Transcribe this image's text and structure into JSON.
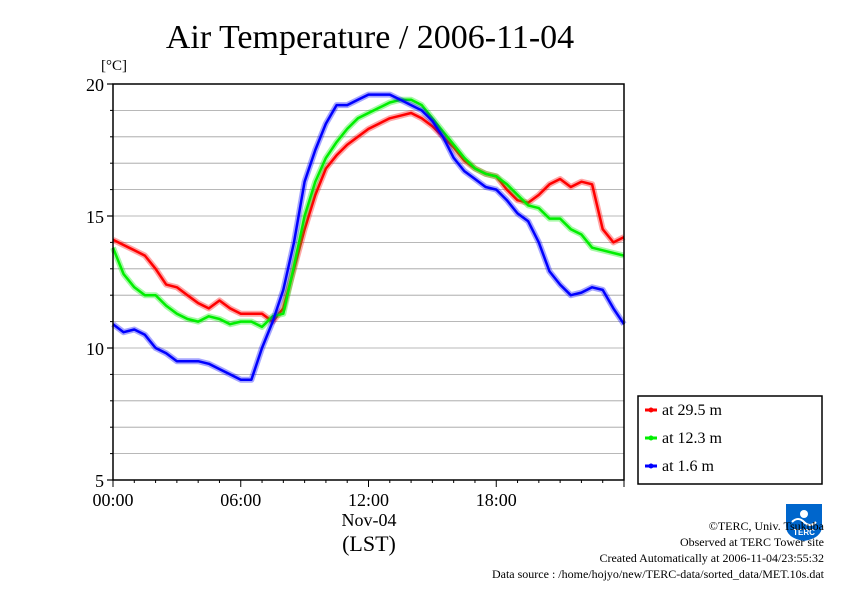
{
  "chart_data": {
    "type": "line",
    "title": "Air Temperature / 2006-11-04",
    "unit_label": "[°C]",
    "ylim": [
      5,
      20
    ],
    "y_ticks": [
      "5",
      "10",
      "15",
      "20"
    ],
    "xlim_hours": [
      0,
      24
    ],
    "x_ticks": [
      "00:00",
      "06:00",
      "12:00",
      "18:00"
    ],
    "date_label": "Nov-04",
    "xlabel": "(LST)",
    "grid": true,
    "legend_position": "bottom-right, outside plot",
    "x": [
      0,
      0.5,
      1,
      1.5,
      2,
      2.5,
      3,
      3.5,
      4,
      4.5,
      5,
      5.5,
      6,
      6.5,
      7,
      7.5,
      8,
      8.5,
      9,
      9.5,
      10,
      10.5,
      11,
      11.5,
      12,
      12.5,
      13,
      13.5,
      14,
      14.5,
      15,
      15.5,
      16,
      16.5,
      17,
      17.5,
      18,
      18.5,
      19,
      19.5,
      20,
      20.5,
      21,
      21.5,
      22,
      22.5,
      23,
      23.5,
      24
    ],
    "series": [
      {
        "name": "at 29.5 m",
        "color": "#ff0000",
        "values": [
          14.1,
          13.9,
          13.7,
          13.5,
          13.0,
          12.4,
          12.3,
          12.0,
          11.7,
          11.5,
          11.8,
          11.5,
          11.3,
          11.3,
          11.3,
          11.0,
          11.5,
          13.0,
          14.5,
          15.8,
          16.8,
          17.3,
          17.7,
          18.0,
          18.3,
          18.5,
          18.7,
          18.8,
          18.9,
          18.7,
          18.4,
          18.0,
          17.6,
          17.1,
          16.8,
          16.6,
          16.5,
          16.0,
          15.6,
          15.5,
          15.8,
          16.2,
          16.4,
          16.1,
          16.3,
          16.2,
          14.5,
          14.0,
          14.2
        ]
      },
      {
        "name": "at 12.3 m",
        "color": "#00ee00",
        "values": [
          13.8,
          12.8,
          12.3,
          12.0,
          12.0,
          11.6,
          11.3,
          11.1,
          11.0,
          11.2,
          11.1,
          10.9,
          11.0,
          11.0,
          10.8,
          11.2,
          11.3,
          13.1,
          15.0,
          16.3,
          17.2,
          17.8,
          18.3,
          18.7,
          18.9,
          19.1,
          19.3,
          19.4,
          19.4,
          19.2,
          18.7,
          18.2,
          17.7,
          17.2,
          16.8,
          16.6,
          16.5,
          16.2,
          15.8,
          15.4,
          15.3,
          14.9,
          14.9,
          14.5,
          14.3,
          13.8,
          13.7,
          13.6,
          13.5
        ]
      },
      {
        "name": "at 1.6 m",
        "color": "#0000ff",
        "values": [
          10.9,
          10.6,
          10.7,
          10.5,
          10.0,
          9.8,
          9.5,
          9.5,
          9.5,
          9.4,
          9.2,
          9.0,
          8.8,
          8.8,
          10.0,
          11.0,
          12.2,
          14.0,
          16.3,
          17.5,
          18.5,
          19.2,
          19.2,
          19.4,
          19.6,
          19.6,
          19.6,
          19.4,
          19.2,
          19.0,
          18.6,
          18.0,
          17.2,
          16.7,
          16.4,
          16.1,
          16.0,
          15.6,
          15.1,
          14.8,
          14.0,
          12.9,
          12.4,
          12.0,
          12.1,
          12.3,
          12.2,
          11.5,
          10.9
        ]
      }
    ]
  },
  "footer": {
    "copyright": "©TERC, Univ. Tsukuba",
    "site": "Observed at TERC Tower site",
    "created": "Created Automatically at 2006-11-04/23:55:32",
    "source": "Data source : /home/hojyo/new/TERC-data/sorted_data/MET.10s.dat"
  },
  "logo_text": "TERC"
}
